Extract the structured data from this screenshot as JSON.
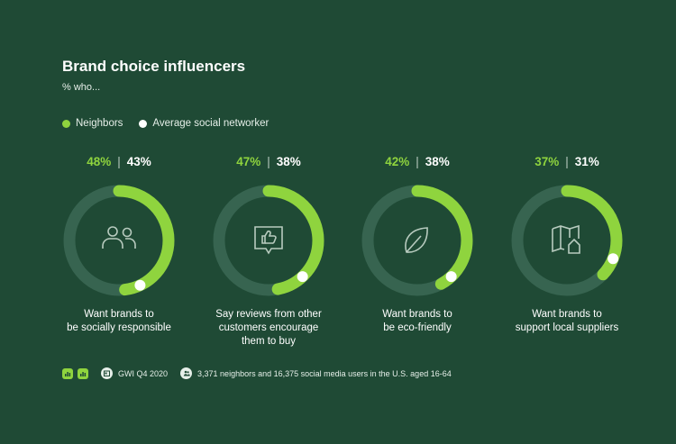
{
  "header": {
    "title": "Brand choice influencers",
    "subtitle": "% who..."
  },
  "legend": [
    {
      "label": "Neighbors",
      "color": "#8fd43e"
    },
    {
      "label": "Average social networker",
      "color": "#ffffff"
    }
  ],
  "footer": {
    "source": "GWI Q4 2020",
    "base": "3,371 neighbors and 16,375 social media users in the U.S. aged 16-64"
  },
  "chart_data": {
    "type": "donut",
    "title": "Brand choice influencers",
    "subtitle": "% who...",
    "series": [
      {
        "name": "Neighbors",
        "values": [
          48,
          47,
          42,
          37
        ]
      },
      {
        "name": "Average social networker",
        "values": [
          43,
          38,
          38,
          31
        ]
      }
    ],
    "categories": [
      "Want brands to\nbe socially responsible",
      "Say reviews from other\ncustomers encourage\nthem to buy",
      "Want brands to\nbe eco-friendly",
      "Want brands to\nsupport local suppliers"
    ],
    "labels": [
      {
        "a": "48%",
        "b": "43%"
      },
      {
        "a": "47%",
        "b": "38%"
      },
      {
        "a": "42%",
        "b": "38%"
      },
      {
        "a": "37%",
        "b": "31%"
      }
    ],
    "icons": [
      "people-icon",
      "thumbs-up-review-icon",
      "leaf-icon",
      "map-home-icon"
    ],
    "colors": {
      "track": "#376450",
      "neighbors": "#8fd43e",
      "average": "#ffffff",
      "icon": "#b8cbbf"
    }
  }
}
